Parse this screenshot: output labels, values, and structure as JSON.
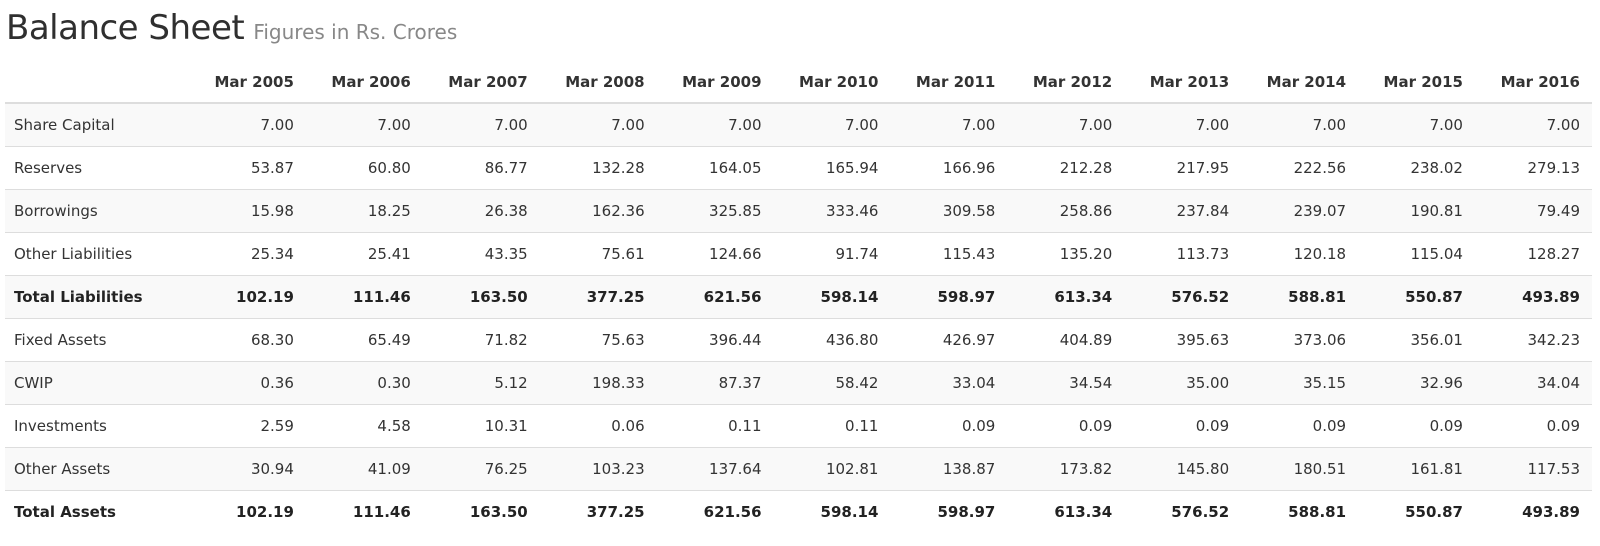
{
  "header": {
    "title": "Balance Sheet",
    "subtitle": "Figures in Rs. Crores"
  },
  "table": {
    "columns": [
      "Mar 2005",
      "Mar 2006",
      "Mar 2007",
      "Mar 2008",
      "Mar 2009",
      "Mar 2010",
      "Mar 2011",
      "Mar 2012",
      "Mar 2013",
      "Mar 2014",
      "Mar 2015",
      "Mar 2016"
    ],
    "rows": [
      {
        "label": "Share Capital",
        "total": false,
        "values": [
          "7.00",
          "7.00",
          "7.00",
          "7.00",
          "7.00",
          "7.00",
          "7.00",
          "7.00",
          "7.00",
          "7.00",
          "7.00",
          "7.00"
        ]
      },
      {
        "label": "Reserves",
        "total": false,
        "values": [
          "53.87",
          "60.80",
          "86.77",
          "132.28",
          "164.05",
          "165.94",
          "166.96",
          "212.28",
          "217.95",
          "222.56",
          "238.02",
          "279.13"
        ]
      },
      {
        "label": "Borrowings",
        "total": false,
        "values": [
          "15.98",
          "18.25",
          "26.38",
          "162.36",
          "325.85",
          "333.46",
          "309.58",
          "258.86",
          "237.84",
          "239.07",
          "190.81",
          "79.49"
        ]
      },
      {
        "label": "Other Liabilities",
        "total": false,
        "values": [
          "25.34",
          "25.41",
          "43.35",
          "75.61",
          "124.66",
          "91.74",
          "115.43",
          "135.20",
          "113.73",
          "120.18",
          "115.04",
          "128.27"
        ]
      },
      {
        "label": "Total Liabilities",
        "total": true,
        "values": [
          "102.19",
          "111.46",
          "163.50",
          "377.25",
          "621.56",
          "598.14",
          "598.97",
          "613.34",
          "576.52",
          "588.81",
          "550.87",
          "493.89"
        ]
      },
      {
        "label": "Fixed Assets",
        "total": false,
        "values": [
          "68.30",
          "65.49",
          "71.82",
          "75.63",
          "396.44",
          "436.80",
          "426.97",
          "404.89",
          "395.63",
          "373.06",
          "356.01",
          "342.23"
        ]
      },
      {
        "label": "CWIP",
        "total": false,
        "values": [
          "0.36",
          "0.30",
          "5.12",
          "198.33",
          "87.37",
          "58.42",
          "33.04",
          "34.54",
          "35.00",
          "35.15",
          "32.96",
          "34.04"
        ]
      },
      {
        "label": "Investments",
        "total": false,
        "values": [
          "2.59",
          "4.58",
          "10.31",
          "0.06",
          "0.11",
          "0.11",
          "0.09",
          "0.09",
          "0.09",
          "0.09",
          "0.09",
          "0.09"
        ]
      },
      {
        "label": "Other Assets",
        "total": false,
        "values": [
          "30.94",
          "41.09",
          "76.25",
          "103.23",
          "137.64",
          "102.81",
          "138.87",
          "173.82",
          "145.80",
          "180.51",
          "161.81",
          "117.53"
        ]
      },
      {
        "label": "Total Assets",
        "total": true,
        "values": [
          "102.19",
          "111.46",
          "163.50",
          "377.25",
          "621.56",
          "598.14",
          "598.97",
          "613.34",
          "576.52",
          "588.81",
          "550.87",
          "493.89"
        ]
      }
    ]
  }
}
